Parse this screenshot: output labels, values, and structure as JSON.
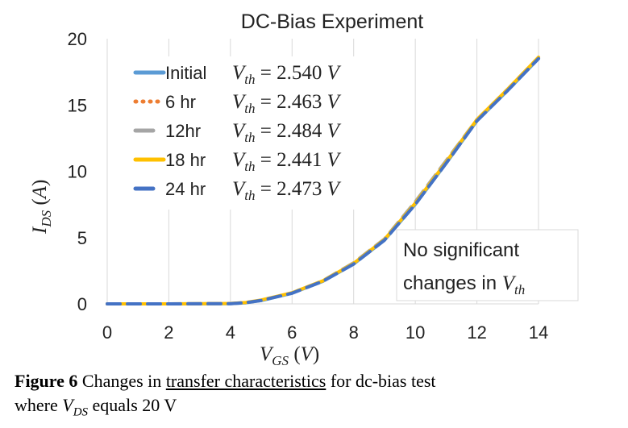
{
  "chart_data": {
    "type": "line",
    "title": "DC-Bias Experiment",
    "xlabel": "V_GS (V)",
    "ylabel": "I_DS (A)",
    "xlim": [
      0,
      14
    ],
    "ylim": [
      0,
      20
    ],
    "xticks": [
      "0",
      "2",
      "4",
      "6",
      "8",
      "10",
      "12",
      "14"
    ],
    "yticks": [
      "0",
      "5",
      "10",
      "15",
      "20"
    ],
    "grid": "vertical",
    "legend_position": "top-left",
    "series": [
      {
        "name": "Initial",
        "vth_label": "V_th = 2.540 V",
        "color": "#5b9bd5",
        "style": "solid",
        "x": [
          0,
          2,
          4,
          4.5,
          5,
          6,
          7,
          8,
          9,
          10,
          11,
          12,
          13,
          14
        ],
        "y": [
          0,
          0,
          0.02,
          0.08,
          0.25,
          0.8,
          1.7,
          3.0,
          4.8,
          7.5,
          10.6,
          13.8,
          16.1,
          18.5
        ]
      },
      {
        "name": "6 hr",
        "vth_label": "V_th = 2.463 V",
        "color": "#ed7d31",
        "style": "dotted",
        "x": [
          0,
          2,
          4,
          4.5,
          5,
          6,
          7,
          8,
          9,
          10,
          11,
          12,
          13,
          14
        ],
        "y": [
          0,
          0,
          0.03,
          0.1,
          0.28,
          0.82,
          1.72,
          3.05,
          4.85,
          7.6,
          10.7,
          13.9,
          16.2,
          18.6
        ]
      },
      {
        "name": "12hr",
        "vth_label": "V_th = 2.484 V",
        "color": "#a5a5a5",
        "style": "dashed",
        "x": [
          0,
          2,
          4,
          4.5,
          5,
          6,
          7,
          8,
          9,
          10,
          11,
          12,
          13,
          14
        ],
        "y": [
          0,
          0,
          0.03,
          0.1,
          0.27,
          0.83,
          1.75,
          3.1,
          4.9,
          7.7,
          10.8,
          13.9,
          16.2,
          18.6
        ]
      },
      {
        "name": "18 hr",
        "vth_label": "V_th = 2.441 V",
        "color": "#ffc000",
        "style": "solid",
        "x": [
          0,
          2,
          4,
          4.5,
          5,
          6,
          7,
          8,
          9,
          10,
          11,
          12,
          13,
          14
        ],
        "y": [
          0,
          0,
          0.03,
          0.11,
          0.29,
          0.84,
          1.74,
          3.06,
          4.86,
          7.6,
          10.7,
          13.9,
          16.2,
          18.6
        ]
      },
      {
        "name": "24 hr",
        "vth_label": "V_th = 2.473 V",
        "color": "#4472c4",
        "style": "dashed",
        "x": [
          0,
          2,
          4,
          4.5,
          5,
          6,
          7,
          8,
          9,
          10,
          11,
          12,
          13,
          14
        ],
        "y": [
          0,
          0,
          0.02,
          0.09,
          0.26,
          0.8,
          1.7,
          3.0,
          4.8,
          7.5,
          10.6,
          13.8,
          16.1,
          18.5
        ]
      }
    ],
    "annotation": {
      "line1": "No significant",
      "line2": "changes in V_th"
    }
  },
  "caption": {
    "label": "Figure 6",
    "text1": " Changes in ",
    "link": "transfer characteristics",
    "text2": " for dc-bias test",
    "text3": "where ",
    "var": "V",
    "var_sub": "DS",
    "text4": " equals 20 V"
  }
}
